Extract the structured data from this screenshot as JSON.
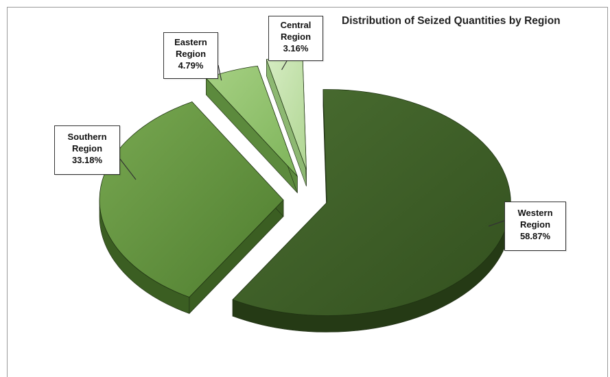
{
  "chart_data": {
    "type": "pie",
    "title": "Distribution of Seized Quantities by Region",
    "slices": [
      {
        "label": "Western Region",
        "value": 58.87,
        "value_label": "58.87%",
        "line1": "Western",
        "line2": "Region",
        "color": "#3d5c27"
      },
      {
        "label": "Southern Region",
        "value": 33.18,
        "value_label": "33.18%",
        "line1": "Southern",
        "line2": "Region",
        "color": "#5e8f3a"
      },
      {
        "label": "Eastern Region",
        "value": 4.79,
        "value_label": "4.79%",
        "line1": "Eastern",
        "line2": "Region",
        "color": "#8fc16b"
      },
      {
        "label": "Central Region",
        "value": 3.16,
        "value_label": "3.16%",
        "line1": "Central",
        "line2": "Region",
        "color": "#bfe0a4"
      }
    ],
    "exploded": true,
    "style": "3d"
  }
}
